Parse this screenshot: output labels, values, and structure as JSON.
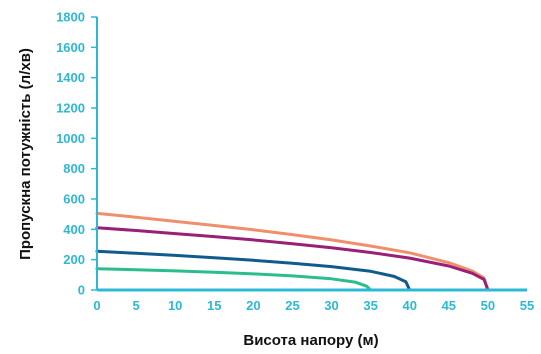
{
  "chart_data": {
    "type": "line",
    "title": "",
    "xlabel": "Висота напору (м)",
    "ylabel": "Пропускна потужність (л/хв)",
    "xlim": [
      0,
      55
    ],
    "ylim": [
      0,
      1800
    ],
    "x_ticks": [
      0,
      5,
      10,
      15,
      20,
      25,
      30,
      35,
      40,
      45,
      50,
      55
    ],
    "y_ticks": [
      0,
      200,
      400,
      600,
      800,
      1000,
      1200,
      1400,
      1600,
      1800
    ],
    "grid": false,
    "series": [
      {
        "color": "#ef8f6c",
        "points": [
          [
            0,
            505
          ],
          [
            5,
            480
          ],
          [
            10,
            452
          ],
          [
            15,
            425
          ],
          [
            20,
            397
          ],
          [
            25,
            365
          ],
          [
            30,
            330
          ],
          [
            35,
            290
          ],
          [
            40,
            245
          ],
          [
            45,
            180
          ],
          [
            48,
            125
          ],
          [
            49.5,
            80
          ],
          [
            50,
            0
          ]
        ]
      },
      {
        "color": "#9a1f77",
        "points": [
          [
            0,
            410
          ],
          [
            5,
            392
          ],
          [
            10,
            372
          ],
          [
            15,
            352
          ],
          [
            20,
            330
          ],
          [
            25,
            305
          ],
          [
            30,
            278
          ],
          [
            35,
            247
          ],
          [
            40,
            210
          ],
          [
            45,
            158
          ],
          [
            48,
            110
          ],
          [
            49.5,
            70
          ],
          [
            50,
            0
          ]
        ]
      },
      {
        "color": "#0f5c8c",
        "points": [
          [
            0,
            255
          ],
          [
            5,
            242
          ],
          [
            10,
            228
          ],
          [
            15,
            213
          ],
          [
            20,
            196
          ],
          [
            25,
            177
          ],
          [
            30,
            154
          ],
          [
            35,
            123
          ],
          [
            38,
            90
          ],
          [
            39.5,
            55
          ],
          [
            40,
            0
          ]
        ]
      },
      {
        "color": "#2bbd8e",
        "points": [
          [
            0,
            140
          ],
          [
            5,
            134
          ],
          [
            10,
            126
          ],
          [
            15,
            117
          ],
          [
            20,
            106
          ],
          [
            25,
            93
          ],
          [
            30,
            74
          ],
          [
            33,
            52
          ],
          [
            34.5,
            25
          ],
          [
            35,
            0
          ]
        ]
      }
    ]
  }
}
